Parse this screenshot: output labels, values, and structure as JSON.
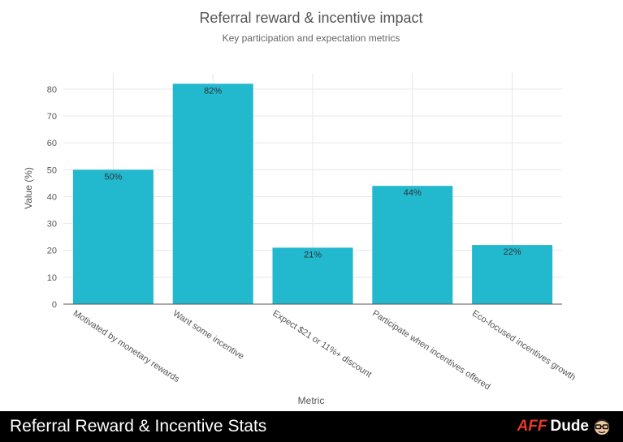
{
  "chart_data": {
    "type": "bar",
    "title": "Referral reward & incentive impact",
    "subtitle": "Key participation and expectation metrics",
    "xlabel": "Metric",
    "ylabel": "Value (%)",
    "ylim": [
      0,
      86
    ],
    "yticks": [
      0,
      10,
      20,
      30,
      40,
      50,
      60,
      70,
      80
    ],
    "grid": true,
    "categories": [
      "Motivated by monetary rewards",
      "Want some incentive",
      "Expect $21 or 11%+ discount",
      "Participate when incentives offered",
      "Eco-focused incentives growth"
    ],
    "values": [
      50,
      82,
      21,
      44,
      22
    ],
    "value_labels": [
      "50%",
      "82%",
      "21%",
      "44%",
      "22%"
    ],
    "colors": {
      "bar": "#22b8ce",
      "grid": "#e5e7eb",
      "text": "#555555",
      "title": "#555555"
    }
  },
  "footer": {
    "title": "Referral Reward & Incentive Stats",
    "brand_aff": "AFF",
    "brand_dude": "Dude",
    "mascot_icon": "cartoon-face-with-glasses-icon"
  }
}
